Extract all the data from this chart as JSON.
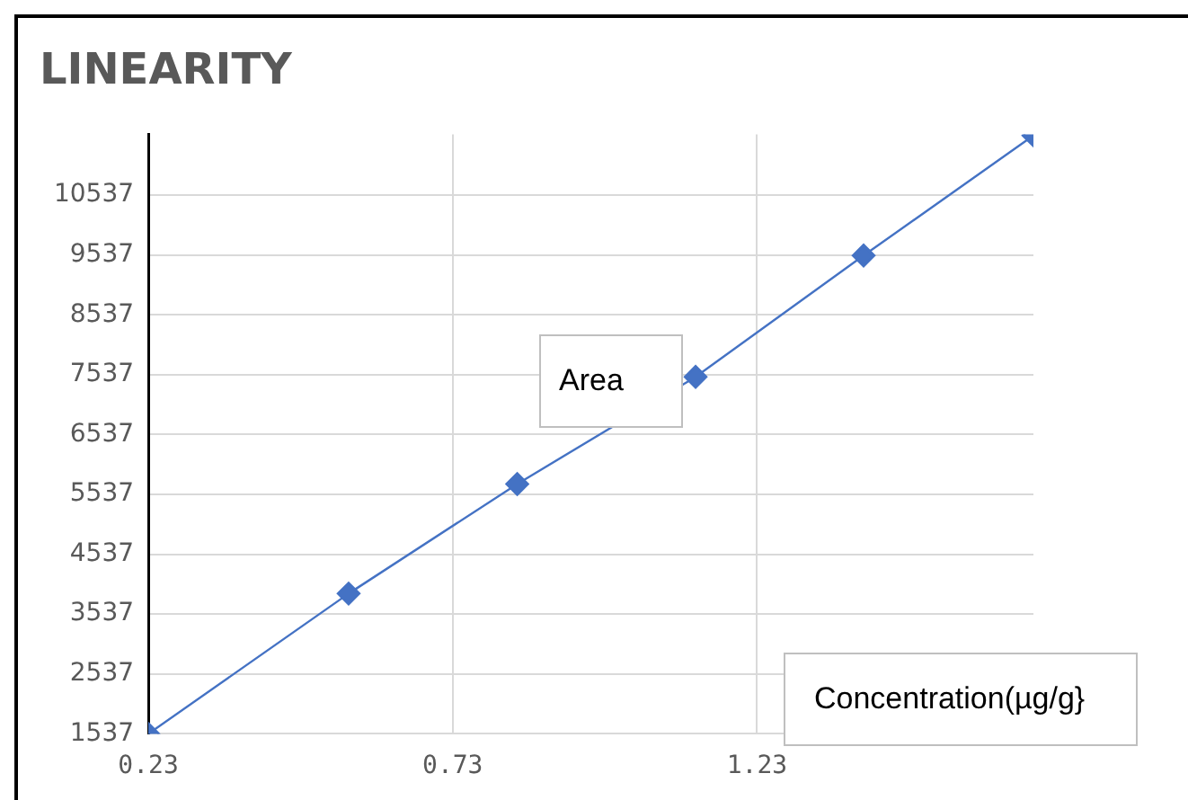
{
  "chart_data": {
    "type": "line",
    "title": "LINEARITY",
    "xlabel": "Concentration(µg/g}",
    "ylabel": "Area",
    "series": [
      {
        "color": "#4472c4",
        "x": [
          0.23,
          0.559,
          0.836,
          1.129,
          1.405,
          1.684
        ],
        "values": [
          1537,
          3880,
          5711,
          7500,
          9527,
          11534
        ]
      }
    ],
    "xlim": [
      0.23,
      1.684
    ],
    "xticks": [
      0.23,
      0.73,
      1.23
    ],
    "ylim": [
      1537,
      11550
    ],
    "yticks": [
      1537,
      2537,
      3537,
      4537,
      5537,
      6537,
      7537,
      8537,
      9537,
      10537
    ],
    "grid": true,
    "legend": false,
    "marker": "diamond",
    "line_style": "solid"
  }
}
